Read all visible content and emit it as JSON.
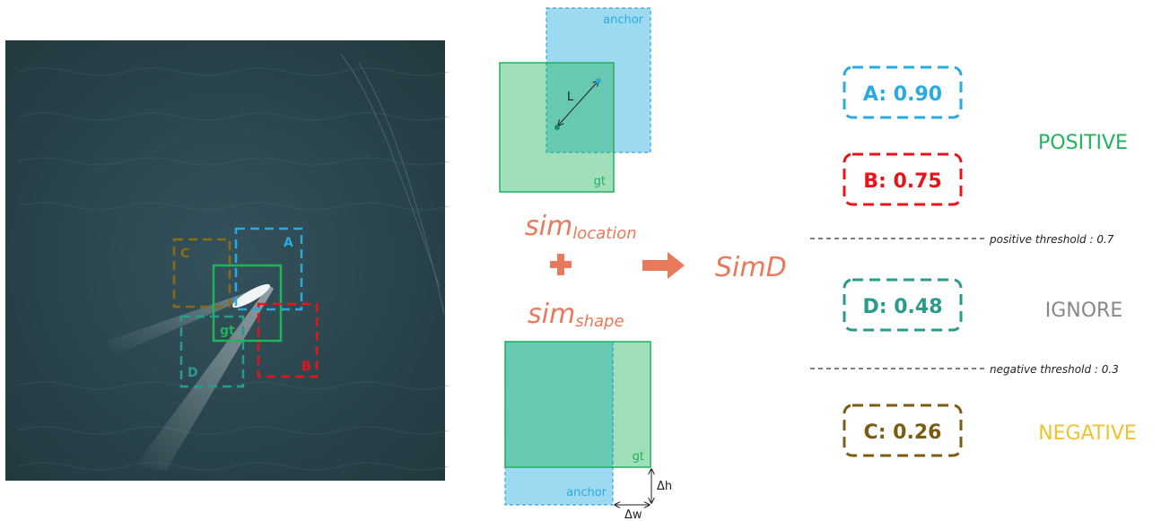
{
  "photo": {
    "boxes": [
      {
        "label": "C"
      },
      {
        "label": "A"
      },
      {
        "label": "gt"
      },
      {
        "label": "D"
      },
      {
        "label": "B"
      }
    ]
  },
  "location_diagram": {
    "anchor_label": "anchor",
    "gt_label": "gt",
    "distance_label": "L"
  },
  "shape_diagram": {
    "gt_label": "gt",
    "anchor_label": "anchor",
    "dh_label": "Δh",
    "dw_label": "Δw"
  },
  "formula": {
    "sim_loc_base": "sim",
    "sim_loc_sub": "location",
    "sim_shape_base": "sim",
    "sim_shape_sub": "shape",
    "result": "SimD"
  },
  "scores": {
    "A": "A: 0.90",
    "B": "B: 0.75",
    "D": "D: 0.48",
    "C": "C: 0.26"
  },
  "categories": {
    "positive": "POSITIVE",
    "ignore": "IGNORE",
    "negative": "NEGATIVE"
  },
  "thresholds": {
    "positive": "positive threshold  :  0.7",
    "negative": "negative threshold  :  0.3"
  },
  "colors": {
    "blue": "#29abe2",
    "red": "#e8141b",
    "teal": "#2a9a8a",
    "olive": "#7a5c12",
    "green": "#1fb35c",
    "orange": "#e8795a",
    "yellow": "#f2c12e",
    "gray": "#888888"
  }
}
